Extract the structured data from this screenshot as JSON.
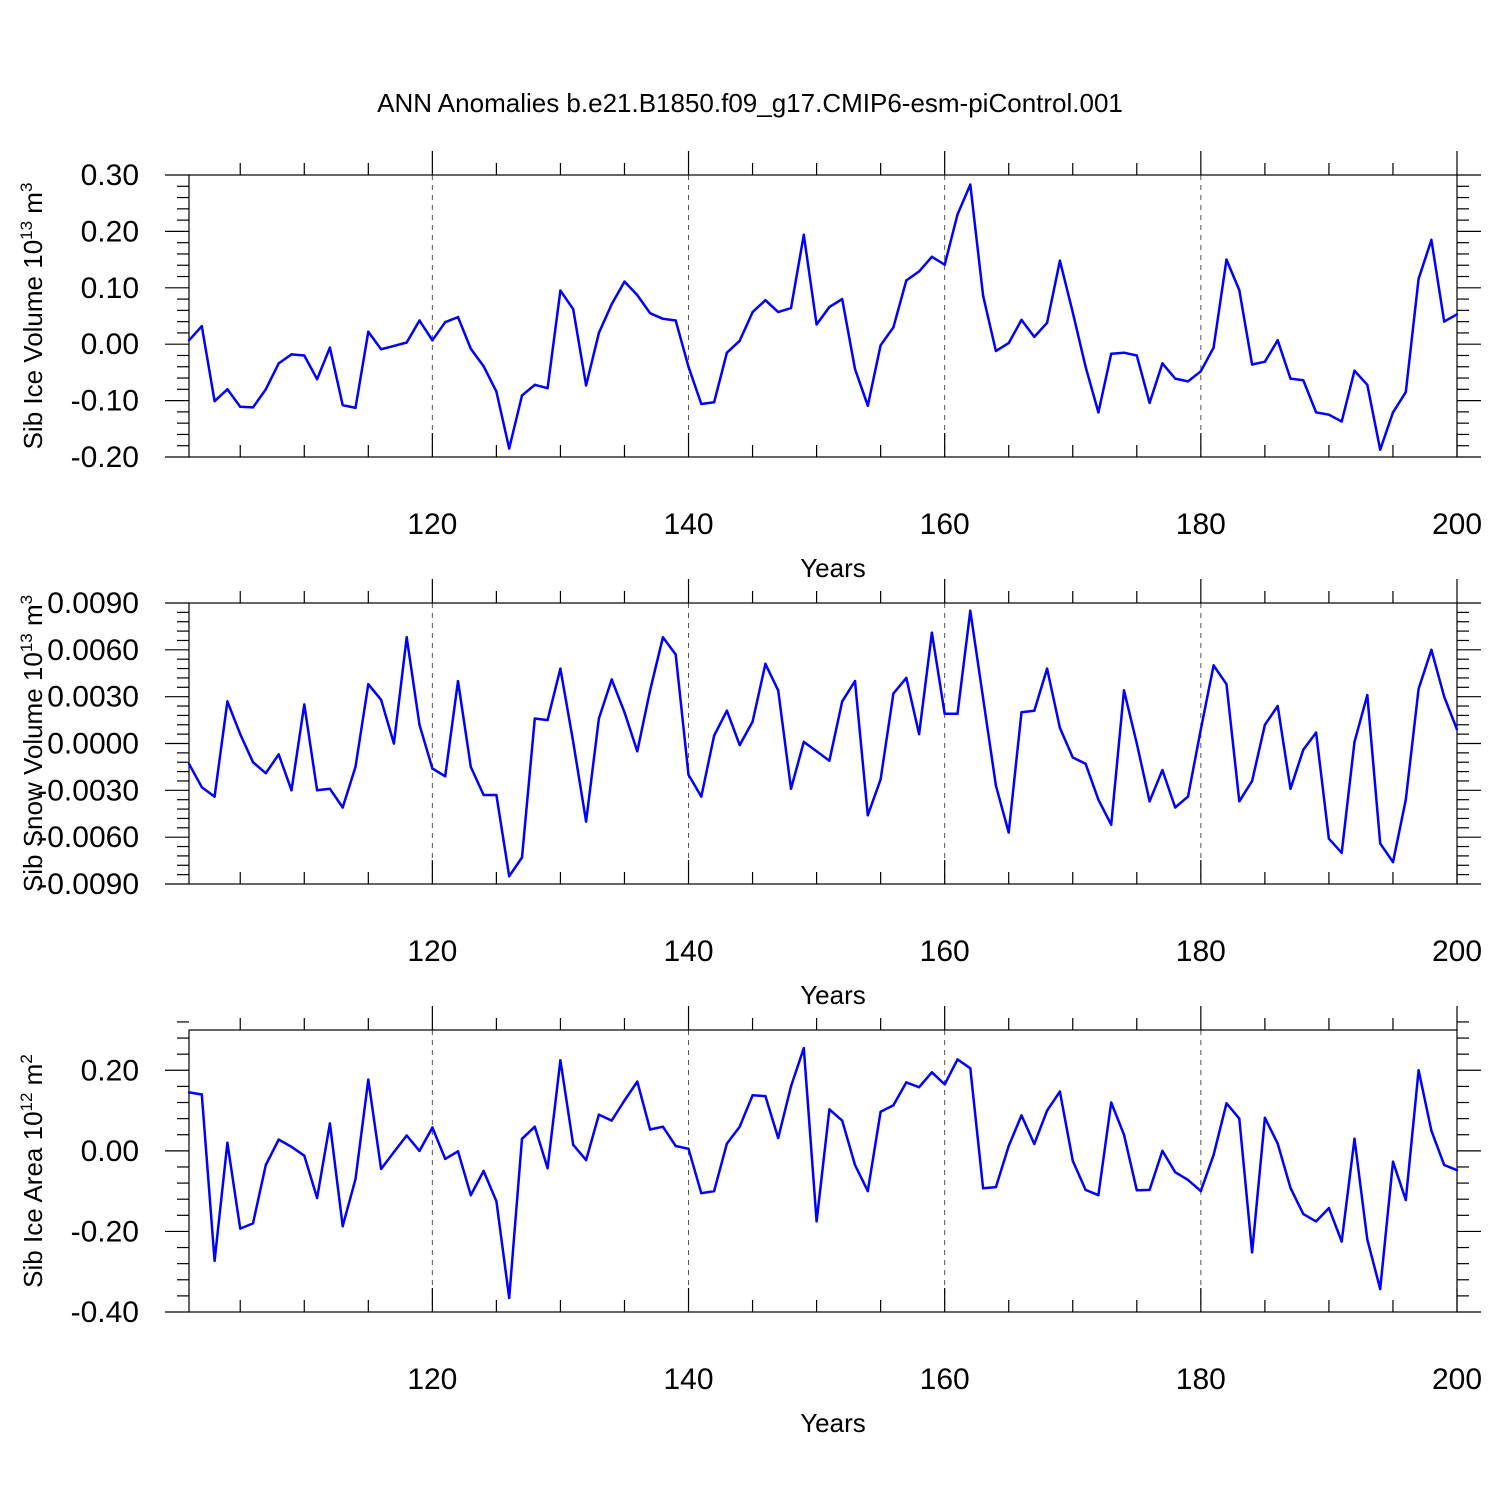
{
  "title": "ANN Anomalies b.e21.B1850.f09_g17.CMIP6-esm-piControl.001",
  "colors": {
    "line": "#0000ff",
    "axes": "#000000"
  },
  "chart_data": [
    {
      "type": "line",
      "name": "sib-ice-volume",
      "ylabel_main": "Sib Ice Volume 10",
      "ylabel_exp": "13",
      "ylabel_unit": " m",
      "ylabel_unit_exp": "3",
      "xlabel": "Years",
      "xlim": [
        101,
        200
      ],
      "ylim": [
        -0.2,
        0.3
      ],
      "xticks": [
        120,
        140,
        160,
        180,
        200
      ],
      "xtick_labels": [
        "120",
        "140",
        "160",
        "180",
        "200"
      ],
      "yticks": [
        -0.2,
        -0.1,
        0.0,
        0.1,
        0.2,
        0.3
      ],
      "ytick_labels": [
        "-0.20",
        "-0.10",
        "0.00",
        "0.10",
        "0.20",
        "0.30"
      ],
      "grid_x": [
        120,
        140,
        160,
        180
      ],
      "x": [
        101,
        102,
        103,
        104,
        105,
        106,
        107,
        108,
        109,
        110,
        111,
        112,
        113,
        114,
        115,
        116,
        117,
        118,
        119,
        120,
        121,
        122,
        123,
        124,
        125,
        126,
        127,
        128,
        129,
        130,
        131,
        132,
        133,
        134,
        135,
        136,
        137,
        138,
        139,
        140,
        141,
        142,
        143,
        144,
        145,
        146,
        147,
        148,
        149,
        150,
        151,
        152,
        153,
        154,
        155,
        156,
        157,
        158,
        159,
        160,
        161,
        162,
        163,
        164,
        165,
        166,
        167,
        168,
        169,
        170,
        171,
        172,
        173,
        174,
        175,
        176,
        177,
        178,
        179,
        180,
        181,
        182,
        183,
        184,
        185,
        186,
        187,
        188,
        189,
        190,
        191,
        192,
        193,
        194,
        195,
        196,
        197,
        198,
        199,
        200
      ],
      "values": [
        0.007,
        0.032,
        -0.101,
        -0.08,
        -0.111,
        -0.112,
        -0.08,
        -0.034,
        -0.018,
        -0.02,
        -0.062,
        -0.006,
        -0.108,
        -0.113,
        0.022,
        -0.009,
        -0.003,
        0.003,
        0.042,
        0.007,
        0.039,
        0.048,
        -0.008,
        -0.039,
        -0.084,
        -0.185,
        -0.091,
        -0.072,
        -0.078,
        0.095,
        0.062,
        -0.073,
        0.02,
        0.071,
        0.111,
        0.087,
        0.055,
        0.045,
        0.042,
        -0.04,
        -0.106,
        -0.103,
        -0.015,
        0.006,
        0.057,
        0.078,
        0.057,
        0.064,
        0.194,
        0.035,
        0.066,
        0.08,
        -0.044,
        -0.109,
        -0.002,
        0.03,
        0.113,
        0.129,
        0.155,
        0.141,
        0.23,
        0.283,
        0.086,
        -0.012,
        0.002,
        0.043,
        0.013,
        0.038,
        0.148,
        0.056,
        -0.04,
        -0.121,
        -0.017,
        -0.015,
        -0.02,
        -0.104,
        -0.034,
        -0.061,
        -0.066,
        -0.048,
        -0.006,
        0.15,
        0.096,
        -0.036,
        -0.031,
        0.007,
        -0.061,
        -0.064,
        -0.121,
        -0.125,
        -0.137,
        -0.047,
        -0.072,
        -0.187,
        -0.121,
        -0.085,
        0.116,
        0.185,
        0.04,
        0.053
      ]
    },
    {
      "type": "line",
      "name": "sib-snow-volume",
      "ylabel_main": "Sib Snow Volume 10",
      "ylabel_exp": "13",
      "ylabel_unit": " m",
      "ylabel_unit_exp": "3",
      "xlabel": "Years",
      "xlim": [
        101,
        200
      ],
      "ylim": [
        -0.009,
        0.009
      ],
      "xticks": [
        120,
        140,
        160,
        180,
        200
      ],
      "xtick_labels": [
        "120",
        "140",
        "160",
        "180",
        "200"
      ],
      "yticks": [
        -0.009,
        -0.006,
        -0.003,
        0.0,
        0.003,
        0.006,
        0.009
      ],
      "ytick_labels": [
        "-0.0090",
        "-0.0060",
        "-0.0030",
        "0.0000",
        "0.0030",
        "0.0060",
        "0.0090"
      ],
      "grid_x": [
        120,
        140,
        160,
        180
      ],
      "x": [
        101,
        102,
        103,
        104,
        105,
        106,
        107,
        108,
        109,
        110,
        111,
        112,
        113,
        114,
        115,
        116,
        117,
        118,
        119,
        120,
        121,
        122,
        123,
        124,
        125,
        126,
        127,
        128,
        129,
        130,
        131,
        132,
        133,
        134,
        135,
        136,
        137,
        138,
        139,
        140,
        141,
        142,
        143,
        144,
        145,
        146,
        147,
        148,
        149,
        150,
        151,
        152,
        153,
        154,
        155,
        156,
        157,
        158,
        159,
        160,
        161,
        162,
        163,
        164,
        165,
        166,
        167,
        168,
        169,
        170,
        171,
        172,
        173,
        174,
        175,
        176,
        177,
        178,
        179,
        180,
        181,
        182,
        183,
        184,
        185,
        186,
        187,
        188,
        189,
        190,
        191,
        192,
        193,
        194,
        195,
        196,
        197,
        198,
        199,
        200
      ],
      "values": [
        -0.0013,
        -0.0028,
        -0.0034,
        0.0027,
        0.0006,
        -0.0012,
        -0.0019,
        -0.0007,
        -0.003,
        0.0025,
        -0.003,
        -0.0029,
        -0.0041,
        -0.0015,
        0.0038,
        0.0028,
        0.0,
        0.0068,
        0.0012,
        -0.0016,
        -0.0021,
        0.004,
        -0.0015,
        -0.0033,
        -0.0033,
        -0.0085,
        -0.0073,
        0.0016,
        0.0015,
        0.0048,
        0.0001,
        -0.005,
        0.0016,
        0.0041,
        0.002,
        -0.0005,
        0.0034,
        0.0068,
        0.0057,
        -0.002,
        -0.0034,
        0.0005,
        0.0021,
        -0.0001,
        0.0014,
        0.0051,
        0.0034,
        -0.0029,
        0.0001,
        -0.0005,
        -0.0011,
        0.0027,
        0.004,
        -0.0046,
        -0.0023,
        0.0032,
        0.0042,
        0.0006,
        0.0071,
        0.0019,
        0.0019,
        0.0085,
        0.0029,
        -0.0027,
        -0.0057,
        0.002,
        0.0021,
        0.0048,
        0.001,
        -0.0009,
        -0.0013,
        -0.0036,
        -0.0052,
        0.0034,
        0.0,
        -0.0037,
        -0.0017,
        -0.0041,
        -0.0034,
        0.0009,
        0.005,
        0.0038,
        -0.0037,
        -0.0024,
        0.0012,
        0.0024,
        -0.0029,
        -0.0004,
        0.0007,
        -0.0061,
        -0.007,
        0.0001,
        0.0031,
        -0.0064,
        -0.0076,
        -0.0036,
        0.0035,
        0.006,
        0.003,
        0.0009
      ]
    },
    {
      "type": "line",
      "name": "sib-ice-area",
      "ylabel_main": "Sib Ice Area 10",
      "ylabel_exp": "12",
      "ylabel_unit": " m",
      "ylabel_unit_exp": "2",
      "xlabel": "Years",
      "xlim": [
        101,
        200
      ],
      "ylim": [
        -0.4,
        0.3
      ],
      "xticks": [
        120,
        140,
        160,
        180,
        200
      ],
      "xtick_labels": [
        "120",
        "140",
        "160",
        "180",
        "200"
      ],
      "yticks": [
        -0.4,
        -0.2,
        0.0,
        0.2
      ],
      "ytick_labels": [
        "-0.40",
        "-0.20",
        "0.00",
        "0.20"
      ],
      "grid_x": [
        120,
        140,
        160,
        180
      ],
      "x": [
        101,
        102,
        103,
        104,
        105,
        106,
        107,
        108,
        109,
        110,
        111,
        112,
        113,
        114,
        115,
        116,
        117,
        118,
        119,
        120,
        121,
        122,
        123,
        124,
        125,
        126,
        127,
        128,
        129,
        130,
        131,
        132,
        133,
        134,
        135,
        136,
        137,
        138,
        139,
        140,
        141,
        142,
        143,
        144,
        145,
        146,
        147,
        148,
        149,
        150,
        151,
        152,
        153,
        154,
        155,
        156,
        157,
        158,
        159,
        160,
        161,
        162,
        163,
        164,
        165,
        166,
        167,
        168,
        169,
        170,
        171,
        172,
        173,
        174,
        175,
        176,
        177,
        178,
        179,
        180,
        181,
        182,
        183,
        184,
        185,
        186,
        187,
        188,
        189,
        190,
        191,
        192,
        193,
        194,
        195,
        196,
        197,
        198,
        199,
        200
      ],
      "values": [
        0.145,
        0.14,
        -0.273,
        0.02,
        -0.193,
        -0.18,
        -0.035,
        0.028,
        0.01,
        -0.012,
        -0.117,
        0.068,
        -0.187,
        -0.07,
        0.177,
        -0.045,
        -0.003,
        0.038,
        0.0,
        0.058,
        -0.02,
        -0.001,
        -0.11,
        -0.05,
        -0.125,
        -0.365,
        0.03,
        0.06,
        -0.043,
        0.225,
        0.015,
        -0.023,
        0.09,
        0.075,
        0.125,
        0.172,
        0.053,
        0.06,
        0.012,
        0.005,
        -0.105,
        -0.1,
        0.018,
        0.06,
        0.138,
        0.136,
        0.032,
        0.16,
        0.255,
        -0.175,
        0.103,
        0.075,
        -0.035,
        -0.1,
        0.097,
        0.113,
        0.17,
        0.158,
        0.195,
        0.165,
        0.227,
        0.205,
        -0.093,
        -0.09,
        0.012,
        0.088,
        0.017,
        0.1,
        0.147,
        -0.025,
        -0.097,
        -0.11,
        0.12,
        0.04,
        -0.098,
        -0.097,
        0.0,
        -0.053,
        -0.072,
        -0.1,
        -0.01,
        0.118,
        0.08,
        -0.252,
        0.082,
        0.018,
        -0.092,
        -0.157,
        -0.175,
        -0.142,
        -0.225,
        0.03,
        -0.22,
        -0.343,
        -0.027,
        -0.122,
        0.2,
        0.05,
        -0.035,
        -0.048
      ]
    }
  ]
}
